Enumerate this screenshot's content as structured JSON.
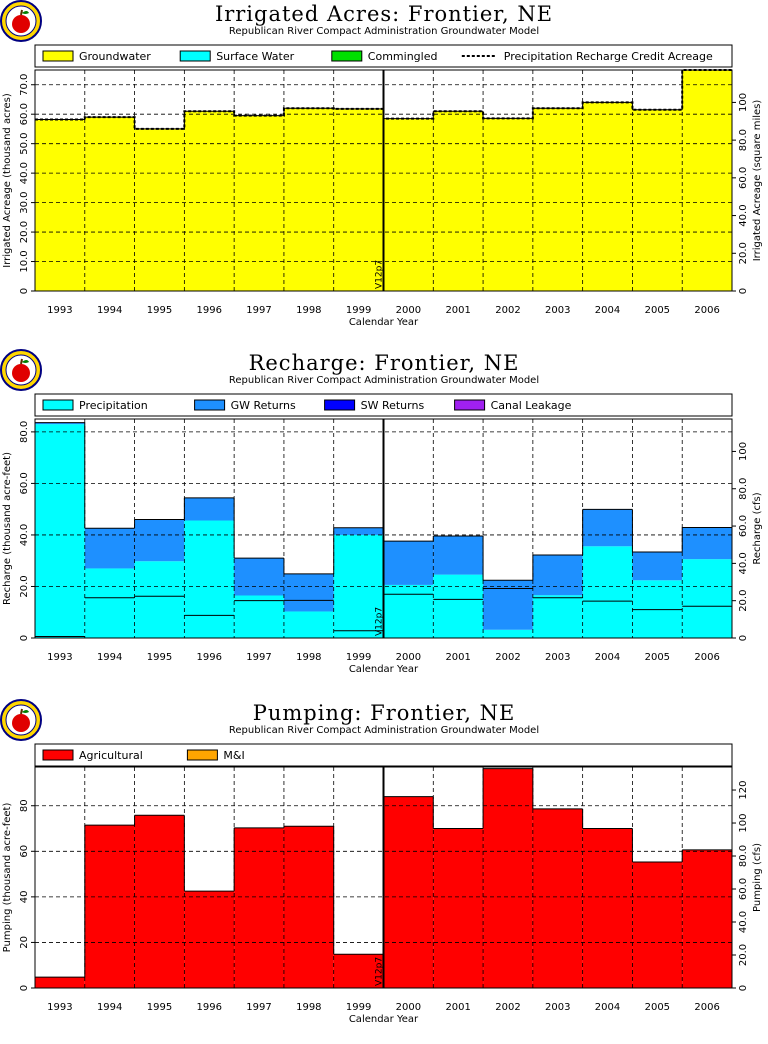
{
  "chart_data": [
    {
      "type": "bar",
      "title": "Irrigated Acres: Frontier, NE",
      "subtitle": "Republican River Compact Administration Groundwater Model",
      "xlabel": "Calendar Year",
      "ylabel": "Irrigated Acreage (thousand acres)",
      "y2label": "Irrigated Acreage (square miles)",
      "categories": [
        "1993",
        "1994",
        "1995",
        "1996",
        "1997",
        "1998",
        "1999",
        "2000",
        "2001",
        "2002",
        "2003",
        "2004",
        "2005",
        "2006"
      ],
      "ylim": [
        0,
        75
      ],
      "yticks": [
        "0",
        "10.0",
        "20.0",
        "30.0",
        "40.0",
        "50.0",
        "60.0",
        "70.0"
      ],
      "y2ticks": [
        "0",
        "20.0",
        "40.0",
        "60.0",
        "80.0",
        "100"
      ],
      "y2scale": 1.5625,
      "grid": true,
      "legend": "top",
      "marker_label": "V12p7",
      "series": [
        {
          "name": "Groundwater",
          "color": "#ffff00",
          "values": [
            58.2,
            59.0,
            55.0,
            61.0,
            59.5,
            62.0,
            61.8,
            58.5,
            61.0,
            58.6,
            62.0,
            64.0,
            61.5,
            75.0
          ]
        },
        {
          "name": "Surface Water",
          "color": "#00ffff",
          "values": [
            0,
            0,
            0,
            0,
            0,
            0,
            0,
            0,
            0,
            0,
            0,
            0,
            0,
            0
          ]
        },
        {
          "name": "Commingled",
          "color": "#00e000",
          "values": [
            0,
            0,
            0,
            0,
            0,
            0,
            0,
            0,
            0,
            0,
            0,
            0,
            0,
            0
          ]
        }
      ],
      "line": {
        "name": "Precipitation Recharge Credit Acreage",
        "values": [
          58.2,
          59.0,
          55.0,
          61.0,
          59.5,
          62.0,
          61.8,
          58.5,
          61.0,
          58.6,
          62.0,
          64.0,
          61.5,
          75.0
        ]
      }
    },
    {
      "type": "bar",
      "title": "Recharge: Frontier, NE",
      "subtitle": "Republican River Compact Administration Groundwater Model",
      "xlabel": "Calendar Year",
      "ylabel": "Recharge (thousand acre-feet)",
      "y2label": "Recharge (cfs)",
      "categories": [
        "1993",
        "1994",
        "1995",
        "1996",
        "1997",
        "1998",
        "1999",
        "2000",
        "2001",
        "2002",
        "2003",
        "2004",
        "2005",
        "2006"
      ],
      "ylim": [
        0,
        85
      ],
      "yticks": [
        "0",
        "20.0",
        "40.0",
        "60.0",
        "80.0"
      ],
      "y2ticks": [
        "0",
        "20.0",
        "40.0",
        "60.0",
        "80.0",
        "100"
      ],
      "y2scale": 1.381,
      "grid": true,
      "legend": "top",
      "marker_label": "V12p7",
      "series": [
        {
          "name": "Precipitation",
          "color": "#00ffff",
          "values": [
            83.0,
            27.0,
            29.8,
            45.6,
            16.5,
            10.3,
            40.0,
            20.6,
            24.6,
            3.2,
            16.6,
            35.6,
            22.4,
            30.6
          ]
        },
        {
          "name": "GW Returns",
          "color": "#1e90ff",
          "values": [
            0.6,
            15.6,
            16.2,
            8.8,
            14.5,
            14.6,
            2.8,
            17.0,
            15.0,
            19.2,
            15.6,
            14.3,
            11.0,
            12.3
          ]
        },
        {
          "name": "SW Returns",
          "color": "#0000ff",
          "values": [
            0,
            0,
            0,
            0,
            0,
            0,
            0,
            0,
            0,
            0,
            0,
            0,
            0,
            0
          ]
        },
        {
          "name": "Canal Leakage",
          "color": "#a020f0",
          "values": [
            0,
            0,
            0,
            0,
            0,
            0,
            0,
            0,
            0,
            0,
            0,
            0,
            0,
            0
          ]
        }
      ]
    },
    {
      "type": "bar",
      "title": "Pumping: Frontier, NE",
      "subtitle": "Republican River Compact Administration Groundwater Model",
      "xlabel": "Calendar Year",
      "ylabel": "Pumping (thousand acre-feet)",
      "y2label": "Pumping (cfs)",
      "categories": [
        "1993",
        "1994",
        "1995",
        "1996",
        "1997",
        "1998",
        "1999",
        "2000",
        "2001",
        "2002",
        "2003",
        "2004",
        "2005",
        "2006"
      ],
      "ylim": [
        0,
        97
      ],
      "yticks": [
        "0",
        "20",
        "40",
        "60",
        "80"
      ],
      "y2ticks": [
        "0",
        "20.0",
        "40.0",
        "60.0",
        "80.0",
        "100",
        "120"
      ],
      "y2scale": 1.381,
      "grid": true,
      "legend": "top",
      "marker_label": "V12p7",
      "series": [
        {
          "name": "Agricultural",
          "color": "#ff0000",
          "values": [
            4.8,
            71.5,
            75.8,
            42.5,
            70.3,
            71.0,
            14.8,
            84.0,
            70.0,
            96.3,
            78.6,
            70.0,
            55.3,
            60.6
          ]
        },
        {
          "name": "M&I",
          "color": "#ffa500",
          "values": [
            0,
            0,
            0,
            0,
            0,
            0,
            0,
            0,
            0,
            0,
            0,
            0,
            0,
            0
          ]
        }
      ]
    }
  ]
}
